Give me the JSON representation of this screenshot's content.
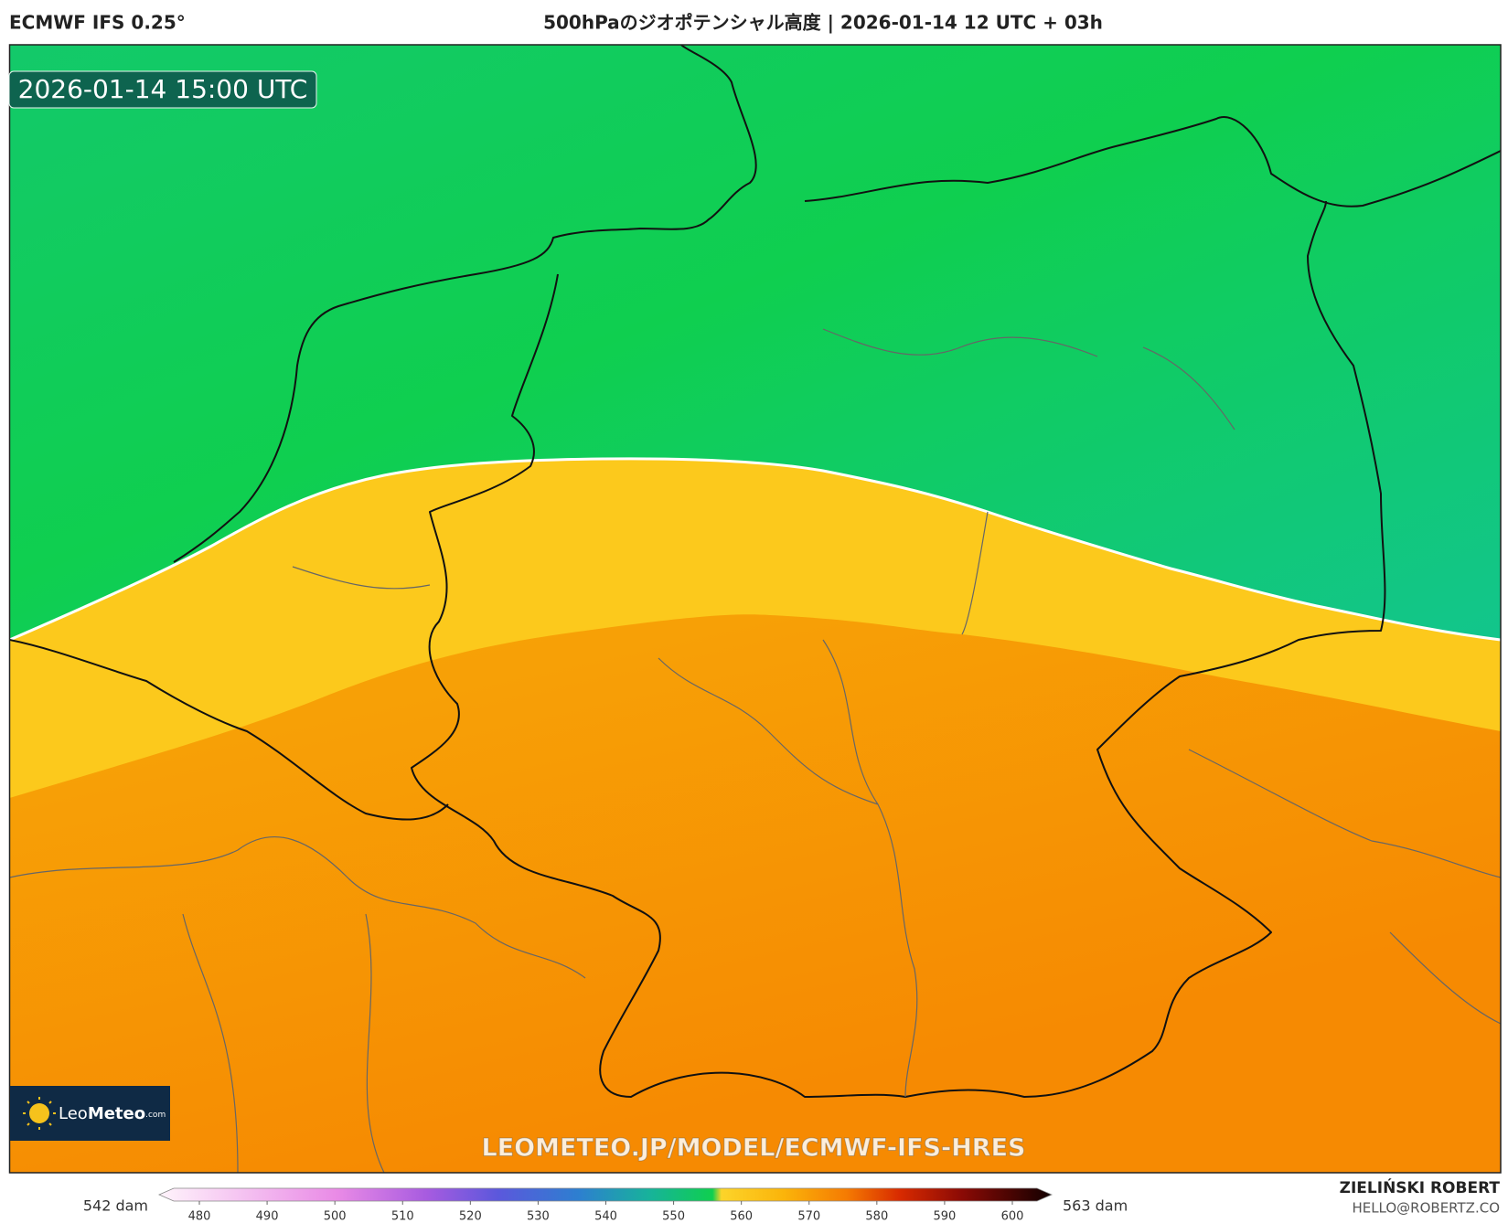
{
  "header": {
    "model": "ECMWF IFS 0.25°",
    "title": "500hPaのジオポテンシャル高度 | 2026-01-14 12 UTC + 03h"
  },
  "map": {
    "valid_time": "2026-01-14 15:00 UTC",
    "watermark": "LEOMETEO.JP/MODEL/ECMWF-IFS-HRES",
    "logo": {
      "name": "Leo",
      "name_bold": "Meteo",
      "suffix": ".com"
    }
  },
  "colorbar": {
    "min_label": "542 dam",
    "max_label": "563 dam",
    "ticks": [
      480,
      490,
      500,
      510,
      520,
      530,
      540,
      550,
      560,
      570,
      580,
      590,
      600
    ]
  },
  "footer": {
    "author": "ZIELIŃSKI ROBERT",
    "email": "HELLO@ROBERTZ.CO"
  }
}
